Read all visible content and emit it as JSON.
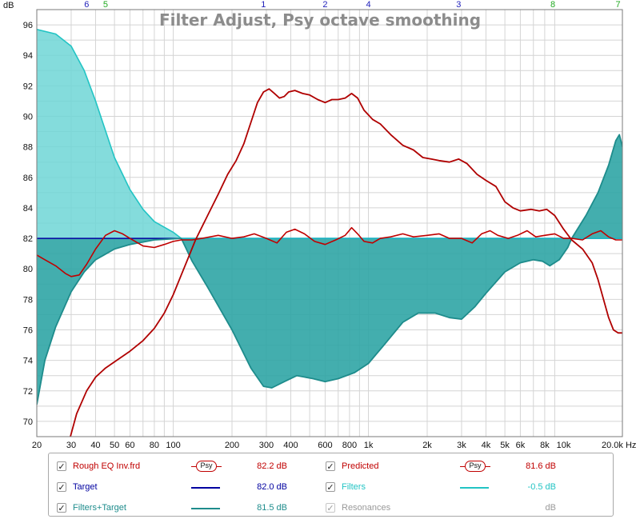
{
  "chart_data": {
    "type": "line",
    "title": "Filter Adjust, Psy octave smoothing",
    "ylabel": "dB",
    "xlabel": "",
    "x_unit": "Hz",
    "xscale": "log",
    "xlim": [
      20,
      20000
    ],
    "ylim": [
      69,
      97
    ],
    "grid": true,
    "reference_level": 82,
    "y_ticks": [
      70,
      72,
      74,
      76,
      78,
      80,
      82,
      84,
      86,
      88,
      90,
      92,
      94,
      96
    ],
    "x_ticks": [
      {
        "value": 20,
        "label": "20"
      },
      {
        "value": 30,
        "label": "30"
      },
      {
        "value": 40,
        "label": "40"
      },
      {
        "value": 50,
        "label": "50"
      },
      {
        "value": 60,
        "label": "60"
      },
      {
        "value": 80,
        "label": "80"
      },
      {
        "value": 100,
        "label": "100"
      },
      {
        "value": 200,
        "label": "200"
      },
      {
        "value": 300,
        "label": "300"
      },
      {
        "value": 400,
        "label": "400"
      },
      {
        "value": 600,
        "label": "600"
      },
      {
        "value": 800,
        "label": "800"
      },
      {
        "value": 1000,
        "label": "1k"
      },
      {
        "value": 2000,
        "label": "2k"
      },
      {
        "value": 3000,
        "label": "3k"
      },
      {
        "value": 4000,
        "label": "4k"
      },
      {
        "value": 5000,
        "label": "5k"
      },
      {
        "value": 6000,
        "label": "6k"
      },
      {
        "value": 8000,
        "label": "8k"
      },
      {
        "value": 10000,
        "label": "10k"
      },
      {
        "value": 20000,
        "label": "20.0k Hz"
      }
    ],
    "filter_markers": [
      {
        "label": "6",
        "freq": 36,
        "color": "#2222bb"
      },
      {
        "label": "5",
        "freq": 45,
        "color": "#22aa22"
      },
      {
        "label": "1",
        "freq": 290,
        "color": "#2222bb"
      },
      {
        "label": "2",
        "freq": 600,
        "color": "#2222bb"
      },
      {
        "label": "4",
        "freq": 1000,
        "color": "#2222bb"
      },
      {
        "label": "3",
        "freq": 2900,
        "color": "#2222bb"
      },
      {
        "label": "8",
        "freq": 8800,
        "color": "#22aa22"
      },
      {
        "label": "7",
        "freq": 19000,
        "color": "#22aa22"
      }
    ],
    "series": [
      {
        "name": "Filters",
        "color": "#22c4c4",
        "fill": "#6fd6d6",
        "points": [
          [
            20,
            95.7
          ],
          [
            25,
            95.4
          ],
          [
            30,
            94.6
          ],
          [
            35,
            93.0
          ],
          [
            40,
            91.0
          ],
          [
            50,
            87.3
          ],
          [
            60,
            85.2
          ],
          [
            70,
            83.9
          ],
          [
            80,
            83.1
          ],
          [
            100,
            82.4
          ],
          [
            110,
            82.0
          ],
          [
            150,
            82.0
          ],
          [
            1000,
            82.0
          ],
          [
            11000,
            82.0
          ],
          [
            20000,
            82.0
          ]
        ]
      },
      {
        "name": "Filters+Target",
        "color": "#1e8c8c",
        "fill": "#2fa5a5",
        "points": [
          [
            20,
            71.1
          ],
          [
            22,
            74.0
          ],
          [
            25,
            76.2
          ],
          [
            30,
            78.5
          ],
          [
            35,
            79.8
          ],
          [
            40,
            80.6
          ],
          [
            50,
            81.3
          ],
          [
            60,
            81.6
          ],
          [
            80,
            81.9
          ],
          [
            110,
            82.0
          ],
          [
            110,
            82.0
          ],
          [
            125,
            80.5
          ],
          [
            150,
            78.8
          ],
          [
            200,
            76.0
          ],
          [
            250,
            73.5
          ],
          [
            290,
            72.3
          ],
          [
            320,
            72.2
          ],
          [
            370,
            72.6
          ],
          [
            430,
            73.0
          ],
          [
            520,
            72.8
          ],
          [
            600,
            72.6
          ],
          [
            700,
            72.8
          ],
          [
            850,
            73.2
          ],
          [
            1000,
            73.8
          ],
          [
            1200,
            75.0
          ],
          [
            1500,
            76.5
          ],
          [
            1800,
            77.1
          ],
          [
            2200,
            77.1
          ],
          [
            2600,
            76.8
          ],
          [
            3000,
            76.7
          ],
          [
            3500,
            77.5
          ],
          [
            4000,
            78.4
          ],
          [
            5000,
            79.8
          ],
          [
            6000,
            80.4
          ],
          [
            7000,
            80.6
          ],
          [
            7800,
            80.5
          ],
          [
            8500,
            80.2
          ],
          [
            9500,
            80.6
          ],
          [
            10500,
            81.4
          ],
          [
            11000,
            82.0
          ],
          [
            11000,
            82.0
          ],
          [
            13000,
            83.5
          ],
          [
            15000,
            85.0
          ],
          [
            17000,
            86.8
          ],
          [
            18500,
            88.4
          ],
          [
            19300,
            88.8
          ],
          [
            20000,
            88.0
          ]
        ]
      },
      {
        "name": "Predicted",
        "color": "#c00000",
        "points": [
          [
            20,
            80.9
          ],
          [
            22,
            80.6
          ],
          [
            25,
            80.2
          ],
          [
            28,
            79.7
          ],
          [
            30,
            79.5
          ],
          [
            33,
            79.6
          ],
          [
            36,
            80.3
          ],
          [
            40,
            81.3
          ],
          [
            45,
            82.2
          ],
          [
            50,
            82.5
          ],
          [
            55,
            82.3
          ],
          [
            60,
            82.0
          ],
          [
            70,
            81.5
          ],
          [
            80,
            81.4
          ],
          [
            90,
            81.6
          ],
          [
            100,
            81.8
          ],
          [
            110,
            81.9
          ],
          [
            125,
            81.9
          ],
          [
            140,
            82.0
          ],
          [
            170,
            82.2
          ],
          [
            200,
            82.0
          ],
          [
            230,
            82.1
          ],
          [
            260,
            82.3
          ],
          [
            300,
            82.0
          ],
          [
            340,
            81.7
          ],
          [
            380,
            82.4
          ],
          [
            420,
            82.6
          ],
          [
            470,
            82.3
          ],
          [
            530,
            81.8
          ],
          [
            600,
            81.6
          ],
          [
            680,
            81.9
          ],
          [
            760,
            82.2
          ],
          [
            820,
            82.7
          ],
          [
            880,
            82.3
          ],
          [
            950,
            81.8
          ],
          [
            1050,
            81.7
          ],
          [
            1150,
            82.0
          ],
          [
            1300,
            82.1
          ],
          [
            1500,
            82.3
          ],
          [
            1700,
            82.1
          ],
          [
            2000,
            82.2
          ],
          [
            2300,
            82.3
          ],
          [
            2600,
            82.0
          ],
          [
            3000,
            82.0
          ],
          [
            3400,
            81.7
          ],
          [
            3800,
            82.3
          ],
          [
            4200,
            82.5
          ],
          [
            4600,
            82.2
          ],
          [
            5200,
            82.0
          ],
          [
            5800,
            82.2
          ],
          [
            6500,
            82.5
          ],
          [
            7200,
            82.1
          ],
          [
            8000,
            82.2
          ],
          [
            9000,
            82.3
          ],
          [
            10000,
            82.0
          ],
          [
            11000,
            82.0
          ],
          [
            12500,
            81.9
          ],
          [
            14000,
            82.3
          ],
          [
            15500,
            82.5
          ],
          [
            17000,
            82.1
          ],
          [
            18500,
            81.9
          ],
          [
            20000,
            81.9
          ]
        ]
      },
      {
        "name": "Rough EQ Inv.frd",
        "color": "#b00000",
        "points": [
          [
            29,
            68.5
          ],
          [
            32,
            70.5
          ],
          [
            36,
            72.0
          ],
          [
            40,
            72.9
          ],
          [
            45,
            73.5
          ],
          [
            50,
            73.9
          ],
          [
            60,
            74.6
          ],
          [
            70,
            75.3
          ],
          [
            80,
            76.1
          ],
          [
            90,
            77.1
          ],
          [
            100,
            78.3
          ],
          [
            110,
            79.6
          ],
          [
            120,
            80.8
          ],
          [
            130,
            81.9
          ],
          [
            150,
            83.5
          ],
          [
            170,
            84.9
          ],
          [
            190,
            86.2
          ],
          [
            210,
            87.1
          ],
          [
            230,
            88.2
          ],
          [
            250,
            89.6
          ],
          [
            270,
            90.9
          ],
          [
            290,
            91.6
          ],
          [
            310,
            91.8
          ],
          [
            330,
            91.5
          ],
          [
            350,
            91.2
          ],
          [
            370,
            91.3
          ],
          [
            390,
            91.6
          ],
          [
            420,
            91.7
          ],
          [
            460,
            91.5
          ],
          [
            500,
            91.4
          ],
          [
            550,
            91.1
          ],
          [
            600,
            90.9
          ],
          [
            650,
            91.1
          ],
          [
            700,
            91.1
          ],
          [
            760,
            91.2
          ],
          [
            820,
            91.5
          ],
          [
            880,
            91.2
          ],
          [
            950,
            90.4
          ],
          [
            1050,
            89.8
          ],
          [
            1150,
            89.5
          ],
          [
            1300,
            88.8
          ],
          [
            1500,
            88.1
          ],
          [
            1700,
            87.8
          ],
          [
            1900,
            87.3
          ],
          [
            2100,
            87.2
          ],
          [
            2300,
            87.1
          ],
          [
            2600,
            87.0
          ],
          [
            2900,
            87.2
          ],
          [
            3200,
            86.9
          ],
          [
            3600,
            86.2
          ],
          [
            4000,
            85.8
          ],
          [
            4500,
            85.4
          ],
          [
            5000,
            84.4
          ],
          [
            5500,
            84.0
          ],
          [
            6000,
            83.8
          ],
          [
            6800,
            83.9
          ],
          [
            7500,
            83.8
          ],
          [
            8200,
            83.9
          ],
          [
            9000,
            83.5
          ],
          [
            10000,
            82.6
          ],
          [
            11000,
            81.9
          ],
          [
            12500,
            81.3
          ],
          [
            14000,
            80.4
          ],
          [
            15000,
            79.3
          ],
          [
            16000,
            78.0
          ],
          [
            17000,
            76.8
          ],
          [
            18000,
            76.0
          ],
          [
            19000,
            75.8
          ],
          [
            20000,
            75.8
          ]
        ]
      },
      {
        "name": "Target",
        "color": "#0000a0",
        "points": [
          [
            20,
            82.0
          ],
          [
            20000,
            82.0
          ]
        ]
      }
    ]
  },
  "legend": [
    {
      "name": "Rough EQ Inv.frd",
      "value": "82.2 dB",
      "color": "#c00000",
      "swatch": "psy",
      "badge": "Psy",
      "checked": true,
      "enabled": true
    },
    {
      "name": "Predicted",
      "value": "81.6 dB",
      "color": "#c00000",
      "swatch": "psy",
      "badge": "Psy",
      "checked": true,
      "enabled": true
    },
    {
      "name": "Target",
      "value": "82.0 dB",
      "color": "#0000a0",
      "swatch": "line",
      "checked": true,
      "enabled": true
    },
    {
      "name": "Filters",
      "value": "-0.5 dB",
      "color": "#22c4c4",
      "swatch": "line",
      "checked": true,
      "enabled": true
    },
    {
      "name": "Filters+Target",
      "value": "81.5 dB",
      "color": "#1e8c8c",
      "swatch": "line",
      "checked": true,
      "enabled": true
    },
    {
      "name": "Resonances",
      "value": "dB",
      "color": "#999999",
      "swatch": "none",
      "checked": true,
      "enabled": false
    }
  ],
  "colors": {
    "grid": "#d4d4d4",
    "axis": "#7a7a7a",
    "title": "#8c8c8c"
  }
}
